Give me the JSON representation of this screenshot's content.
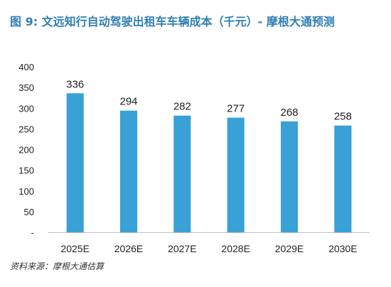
{
  "chart_data": {
    "type": "bar",
    "title": "图 9: 文远知行自动驾驶出租车车辆成本（千元）- 摩根大通预测",
    "categories": [
      "2025E",
      "2026E",
      "2027E",
      "2028E",
      "2029E",
      "2030E"
    ],
    "values": [
      336,
      294,
      282,
      277,
      268,
      258
    ],
    "data_labels": [
      "336",
      "294",
      "282",
      "277",
      "268",
      "258"
    ],
    "ylim": [
      0,
      400
    ],
    "yticks": [
      "-",
      "50",
      "100",
      "150",
      "200",
      "250",
      "300",
      "350",
      "400"
    ],
    "xlabel": "",
    "ylabel": "",
    "grid": false,
    "legend": "none",
    "bar_color": "#39a1d6",
    "source": "资料来源：摩根大通估算"
  }
}
